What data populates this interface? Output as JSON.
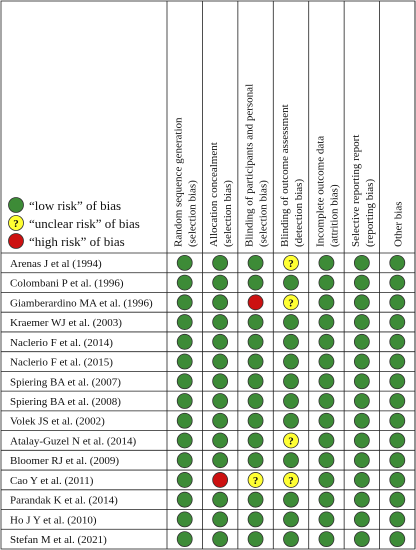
{
  "legend": [
    {
      "label": "“low risk” of bias",
      "color": "#3d8b37"
    },
    {
      "label": "“unclear risk” of bias",
      "color": "#ffff33",
      "symbol": "?"
    },
    {
      "label": "“high risk” of bias",
      "color": "#cc1111"
    }
  ],
  "columns": [
    [
      "Random sequence generation",
      "(selection bias)"
    ],
    [
      "Allocation concealment",
      "(selection bias)"
    ],
    [
      "Blinding of participants and personal",
      "(selection bias)"
    ],
    [
      "Blinding of outcome assessment",
      "(detection bias)"
    ],
    [
      "Incomplete outcome data",
      "(attrition bias)"
    ],
    [
      "Selective reporting report",
      "(reporting bias)"
    ],
    [
      "Other bias"
    ]
  ],
  "rows": [
    {
      "study": "Arenas J et al (1994)",
      "judgements": [
        0,
        0,
        0,
        1,
        0,
        0,
        0
      ]
    },
    {
      "study": "Colombani P et al. (1996)",
      "judgements": [
        0,
        0,
        0,
        0,
        0,
        0,
        0
      ]
    },
    {
      "study": "Giamberardino MA et al. (1996)",
      "judgements": [
        0,
        0,
        2,
        1,
        0,
        0,
        0
      ]
    },
    {
      "study": "Kraemer WJ et al. (2003)",
      "judgements": [
        0,
        0,
        0,
        0,
        0,
        0,
        0
      ]
    },
    {
      "study": "Naclerio F et al. (2014)",
      "judgements": [
        0,
        0,
        0,
        0,
        0,
        0,
        0
      ]
    },
    {
      "study": "Naclerio F et al. (2015)",
      "judgements": [
        0,
        0,
        0,
        0,
        0,
        0,
        0
      ]
    },
    {
      "study": "Spiering BA et al. (2007)",
      "judgements": [
        0,
        0,
        0,
        0,
        0,
        0,
        0
      ]
    },
    {
      "study": "Spiering BA et al. (2008)",
      "judgements": [
        0,
        0,
        0,
        0,
        0,
        0,
        0
      ]
    },
    {
      "study": "Volek JS et al. (2002)",
      "judgements": [
        0,
        0,
        0,
        0,
        0,
        0,
        0
      ]
    },
    {
      "study": "Atalay-Guzel N et al. (2014)",
      "judgements": [
        0,
        0,
        0,
        1,
        0,
        0,
        0
      ]
    },
    {
      "study": "Bloomer RJ et al. (2009)",
      "judgements": [
        0,
        0,
        0,
        0,
        0,
        0,
        0
      ]
    },
    {
      "study": "Cao Y et al. (2011)",
      "judgements": [
        0,
        2,
        1,
        1,
        0,
        0,
        0
      ]
    },
    {
      "study": "Parandak K et al. (2014)",
      "judgements": [
        0,
        0,
        0,
        0,
        0,
        0,
        0
      ]
    },
    {
      "study": "Ho J Y et al. (2010)",
      "judgements": [
        0,
        0,
        0,
        0,
        0,
        0,
        0
      ]
    },
    {
      "study": "Stefan M et al. (2021)",
      "judgements": [
        0,
        0,
        0,
        0,
        0,
        0,
        0
      ]
    }
  ]
}
